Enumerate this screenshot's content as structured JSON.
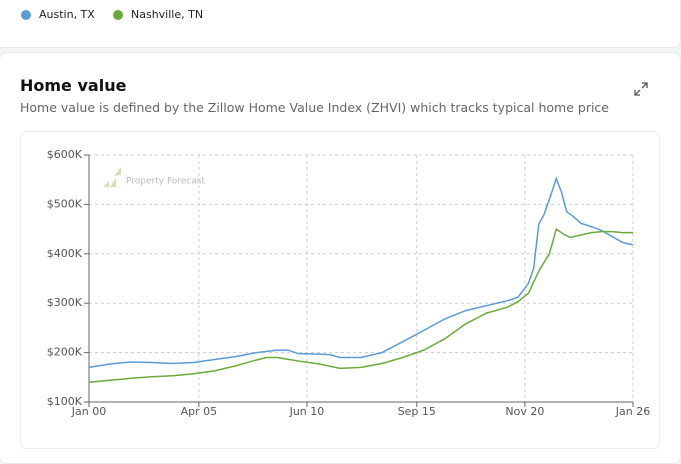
{
  "section": {
    "title": "Home value",
    "subtitle": "Home value is defined by the Zillow Home Value Index (ZHVI) which tracks typical home price"
  },
  "chart_data": {
    "type": "line",
    "watermark": "Property Forecast",
    "xlim": [
      "2000-01",
      "2026-01"
    ],
    "xticks": [
      {
        "value": "2000-01",
        "label": "Jan 00"
      },
      {
        "value": "2005-04",
        "label": "Apr 05"
      },
      {
        "value": "2010-06",
        "label": "Jun 10"
      },
      {
        "value": "2015-09",
        "label": "Sep 15"
      },
      {
        "value": "2020-11",
        "label": "Nov 20"
      },
      {
        "value": "2026-01",
        "label": "Jan 26"
      }
    ],
    "ylim": [
      100000,
      600000
    ],
    "yticks": [
      {
        "value": 100000,
        "label": "$100K"
      },
      {
        "value": 200000,
        "label": "$200K"
      },
      {
        "value": 300000,
        "label": "$300K"
      },
      {
        "value": 400000,
        "label": "$400K"
      },
      {
        "value": 500000,
        "label": "$500K"
      },
      {
        "value": 600000,
        "label": "$600K"
      }
    ],
    "grid": true,
    "series": [
      {
        "name": "Austin, TX",
        "color": "#5b9bd5",
        "x": [
          "2000-01",
          "2001-01",
          "2002-01",
          "2003-01",
          "2004-01",
          "2005-01",
          "2006-01",
          "2007-01",
          "2008-01",
          "2009-01",
          "2009-07",
          "2010-01",
          "2011-01",
          "2011-07",
          "2012-01",
          "2013-01",
          "2014-01",
          "2015-01",
          "2016-01",
          "2017-01",
          "2018-01",
          "2019-01",
          "2020-01",
          "2020-07",
          "2021-01",
          "2021-04",
          "2021-07",
          "2021-10",
          "2022-01",
          "2022-05",
          "2022-08",
          "2022-11",
          "2023-03",
          "2023-07",
          "2024-01",
          "2024-07",
          "2025-01",
          "2025-07",
          "2026-01"
        ],
        "values": [
          170000,
          177000,
          181000,
          180000,
          178000,
          180000,
          186000,
          192000,
          200000,
          205000,
          205000,
          198000,
          197000,
          196000,
          190000,
          190000,
          200000,
          222000,
          245000,
          268000,
          285000,
          295000,
          305000,
          312000,
          340000,
          370000,
          460000,
          480000,
          510000,
          552000,
          525000,
          485000,
          475000,
          462000,
          455000,
          447000,
          435000,
          423000,
          418000
        ]
      },
      {
        "name": "Nashville, TN",
        "color": "#6aaa3a",
        "x": [
          "2000-01",
          "2001-01",
          "2002-01",
          "2003-01",
          "2004-01",
          "2005-01",
          "2006-01",
          "2007-01",
          "2008-01",
          "2008-07",
          "2009-01",
          "2010-01",
          "2011-01",
          "2012-01",
          "2013-01",
          "2014-01",
          "2015-01",
          "2016-01",
          "2017-01",
          "2018-01",
          "2019-01",
          "2020-01",
          "2020-07",
          "2021-01",
          "2021-07",
          "2022-01",
          "2022-05",
          "2022-09",
          "2023-01",
          "2023-07",
          "2024-01",
          "2024-07",
          "2025-01",
          "2025-07",
          "2026-01"
        ],
        "values": [
          140000,
          144000,
          148000,
          151000,
          153000,
          157000,
          163000,
          173000,
          185000,
          190000,
          190000,
          183000,
          177000,
          168000,
          170000,
          178000,
          190000,
          205000,
          228000,
          258000,
          280000,
          292000,
          303000,
          320000,
          365000,
          400000,
          450000,
          440000,
          433000,
          438000,
          443000,
          445000,
          445000,
          443000,
          443000
        ]
      }
    ]
  }
}
